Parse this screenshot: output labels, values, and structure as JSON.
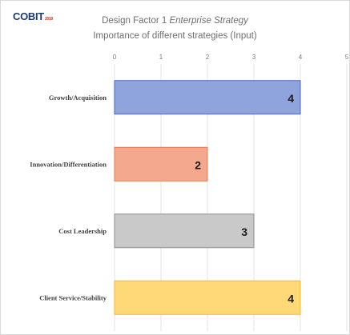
{
  "logo": {
    "text": "COBIT",
    "sub": "2019"
  },
  "title": {
    "prefix": "Design Factor 1 ",
    "emphasis": "Enterprise Strategy"
  },
  "subtitle": "Importance  of different strategies (Input)",
  "chart_data": {
    "type": "bar",
    "orientation": "horizontal",
    "categories": [
      "Growth/Acquisition",
      "Innovation/Differentiation",
      "Cost Leadership",
      "Client Service/Stability"
    ],
    "values": [
      4,
      2,
      3,
      4
    ],
    "data_labels": [
      "4",
      "2",
      "3",
      "4"
    ],
    "bar_colors": [
      "#8fa3dc",
      "#f4a98e",
      "#c9c9c9",
      "#ffd978"
    ],
    "bar_borders": [
      "#4a66c4",
      "#e8794f",
      "#8c8c8c",
      "#f0b830"
    ],
    "xlim": [
      0,
      5
    ],
    "xticks": [
      "0",
      "1",
      "2",
      "3",
      "4",
      "5"
    ],
    "x_axis_position": "top",
    "grid": true,
    "legend": "none"
  }
}
